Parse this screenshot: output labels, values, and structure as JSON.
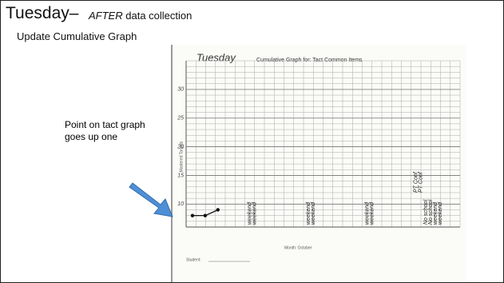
{
  "header": {
    "title": "Tuesday–",
    "note_emphasis": "AFTER",
    "note_rest": "data collection",
    "subtitle": "Update Cumulative Graph"
  },
  "callout": "Point on tact graph goes up one",
  "graph": {
    "handwritten_day": "Tuesday",
    "title": "Cumulative Graph for: Tact Common Items",
    "y_label": "Mastered Targets",
    "ylim": [
      6,
      35
    ],
    "yticks": [
      10,
      15,
      20,
      25,
      30
    ],
    "points": [
      8,
      8,
      9
    ],
    "annotations": [
      {
        "lines": [
          "weekend",
          "weekend"
        ],
        "column": 6
      },
      {
        "lines": [
          "weekend",
          "weekend"
        ],
        "column": 12
      },
      {
        "lines": [
          "weekend",
          "weekend"
        ],
        "column": 18
      },
      {
        "lines": [
          "PT Conf",
          "PT Conf"
        ],
        "column": 23
      },
      {
        "lines": [
          "No school",
          "No school",
          "weekend",
          "weekend"
        ],
        "column": 24
      }
    ],
    "month_label": "Month: October",
    "student_label": "Student:"
  }
}
